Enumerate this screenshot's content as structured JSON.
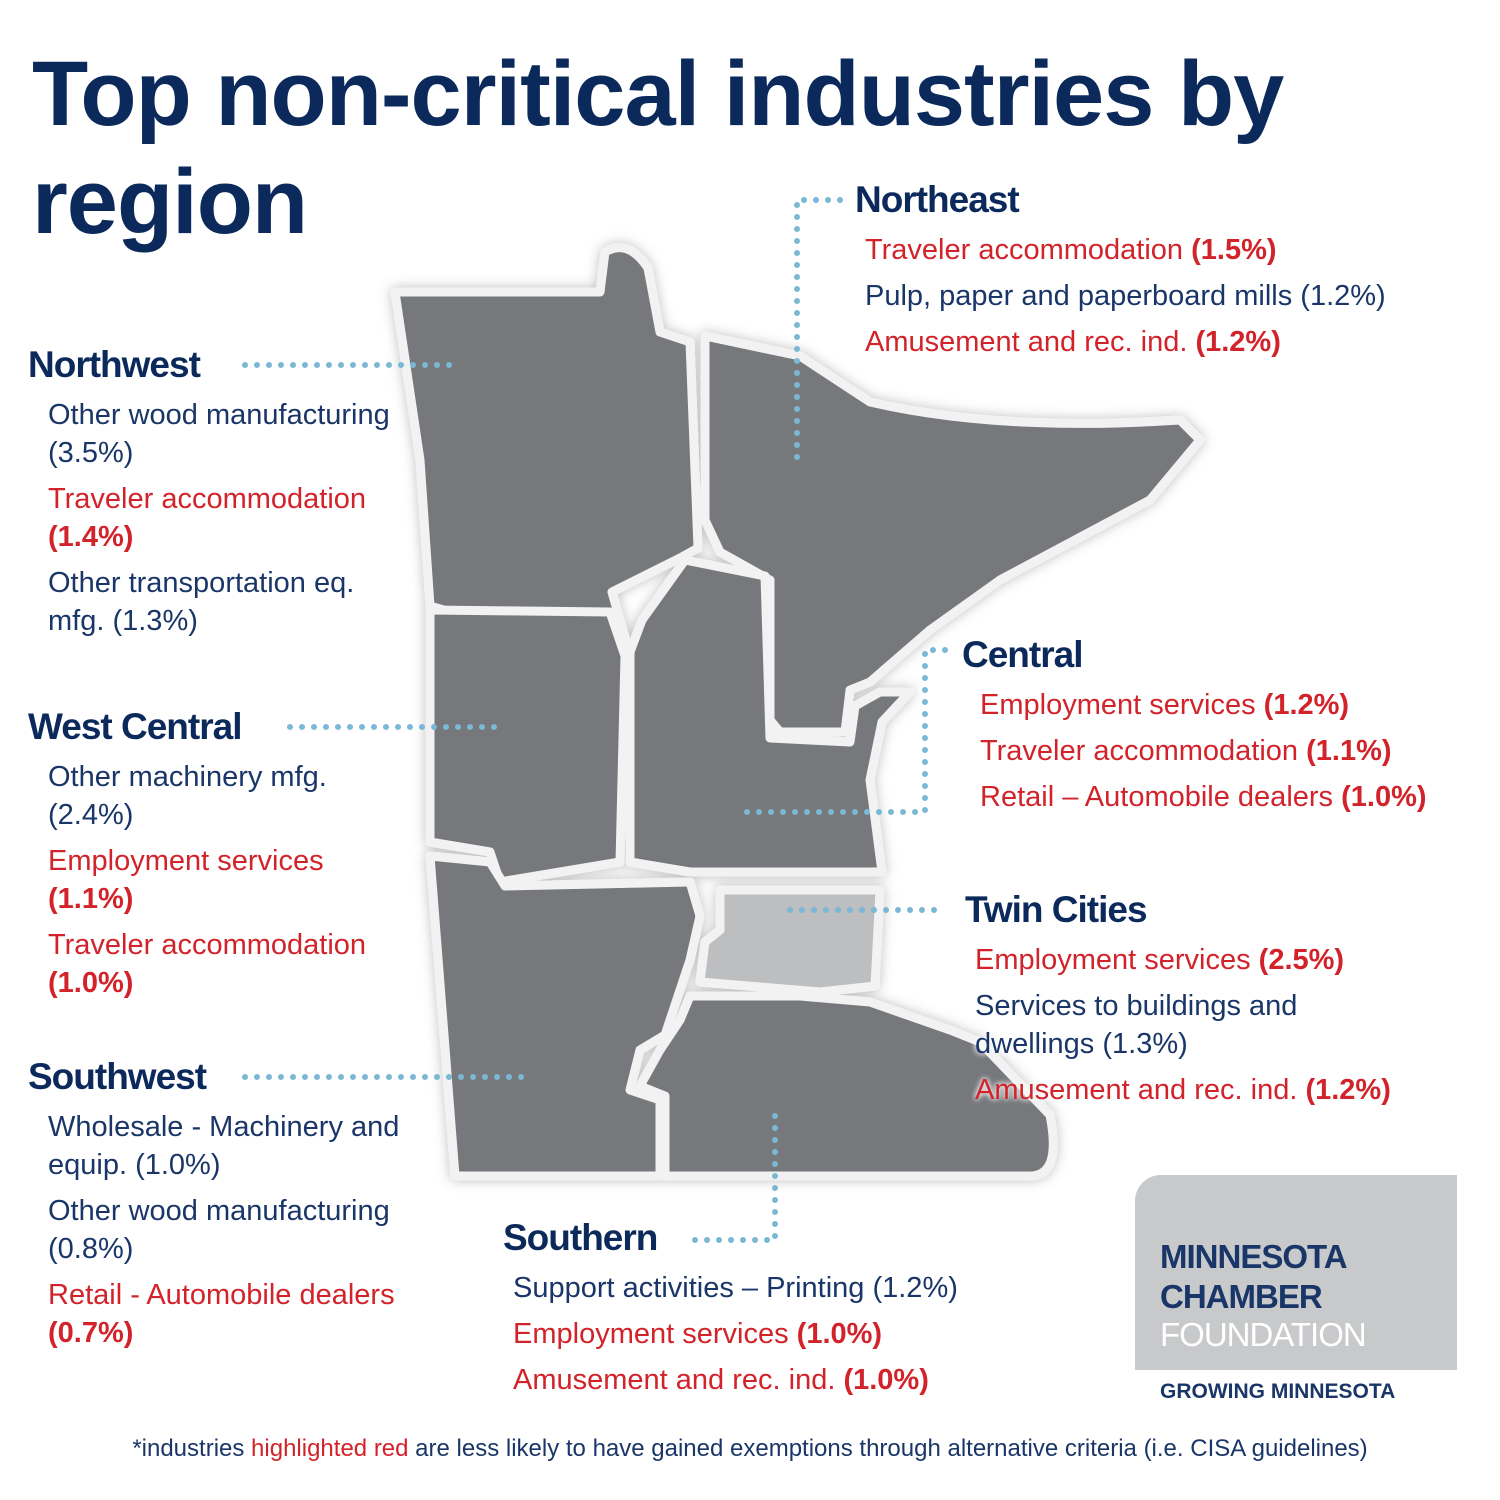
{
  "title": "Top non-critical industries by region",
  "regions": [
    {
      "name": "Northeast",
      "items": [
        {
          "label": "Traveler accommodation",
          "value": "(1.5%)",
          "highlight": true
        },
        {
          "label": "Pulp, paper and paperboard mills",
          "value": "(1.2%)",
          "highlight": false
        },
        {
          "label": "Amusement and rec. ind.",
          "value": "(1.2%)",
          "highlight": true
        }
      ]
    },
    {
      "name": "Northwest",
      "items": [
        {
          "label": "Other wood manufacturing",
          "value": "(3.5%)",
          "highlight": false
        },
        {
          "label": "Traveler accommodation",
          "value": "(1.4%)",
          "highlight": true
        },
        {
          "label": "Other transportation eq. mfg.",
          "value": "(1.3%)",
          "highlight": false
        }
      ]
    },
    {
      "name": "West Central",
      "items": [
        {
          "label": "Other machinery mfg.",
          "value": "(2.4%)",
          "highlight": false
        },
        {
          "label": "Employment services",
          "value": "(1.1%)",
          "highlight": true
        },
        {
          "label": "Traveler accommodation",
          "value": "(1.0%)",
          "highlight": true
        }
      ]
    },
    {
      "name": "Central",
      "items": [
        {
          "label": "Employment services",
          "value": "(1.2%)",
          "highlight": true
        },
        {
          "label": "Traveler accommodation",
          "value": "(1.1%)",
          "highlight": true
        },
        {
          "label": "Retail – Automobile dealers",
          "value": "(1.0%)",
          "highlight": true
        }
      ]
    },
    {
      "name": "Twin Cities",
      "items": [
        {
          "label": "Employment services",
          "value": "(2.5%)",
          "highlight": true
        },
        {
          "label": "Services to buildings and dwellings",
          "value": "(1.3%)",
          "highlight": false
        },
        {
          "label": "Amusement and rec. ind.",
          "value": "(1.2%)",
          "highlight": true
        }
      ]
    },
    {
      "name": "Southwest",
      "items": [
        {
          "label": "Wholesale - Machinery and equip.",
          "value": "(1.0%)",
          "highlight": false
        },
        {
          "label": "Other wood manufacturing",
          "value": "(0.8%)",
          "highlight": false
        },
        {
          "label": "Retail - Automobile dealers",
          "value": "(0.7%)",
          "highlight": true
        }
      ]
    },
    {
      "name": "Southern",
      "items": [
        {
          "label": "Support activities – Printing",
          "value": "(1.2%)",
          "highlight": false
        },
        {
          "label": "Employment services",
          "value": "(1.0%)",
          "highlight": true
        },
        {
          "label": "Amusement and rec. ind.",
          "value": "(1.0%)",
          "highlight": true
        }
      ]
    }
  ],
  "logo": {
    "line1": "MINNESOTA",
    "line2": "CHAMBER",
    "line3": "FOUNDATION",
    "tagline": "GROWING MINNESOTA"
  },
  "footnote": {
    "before": "*industries",
    "highlight": "highlighted red",
    "after": "are less likely to have gained exemptions through alternative criteria (i.e. CISA guidelines)"
  }
}
